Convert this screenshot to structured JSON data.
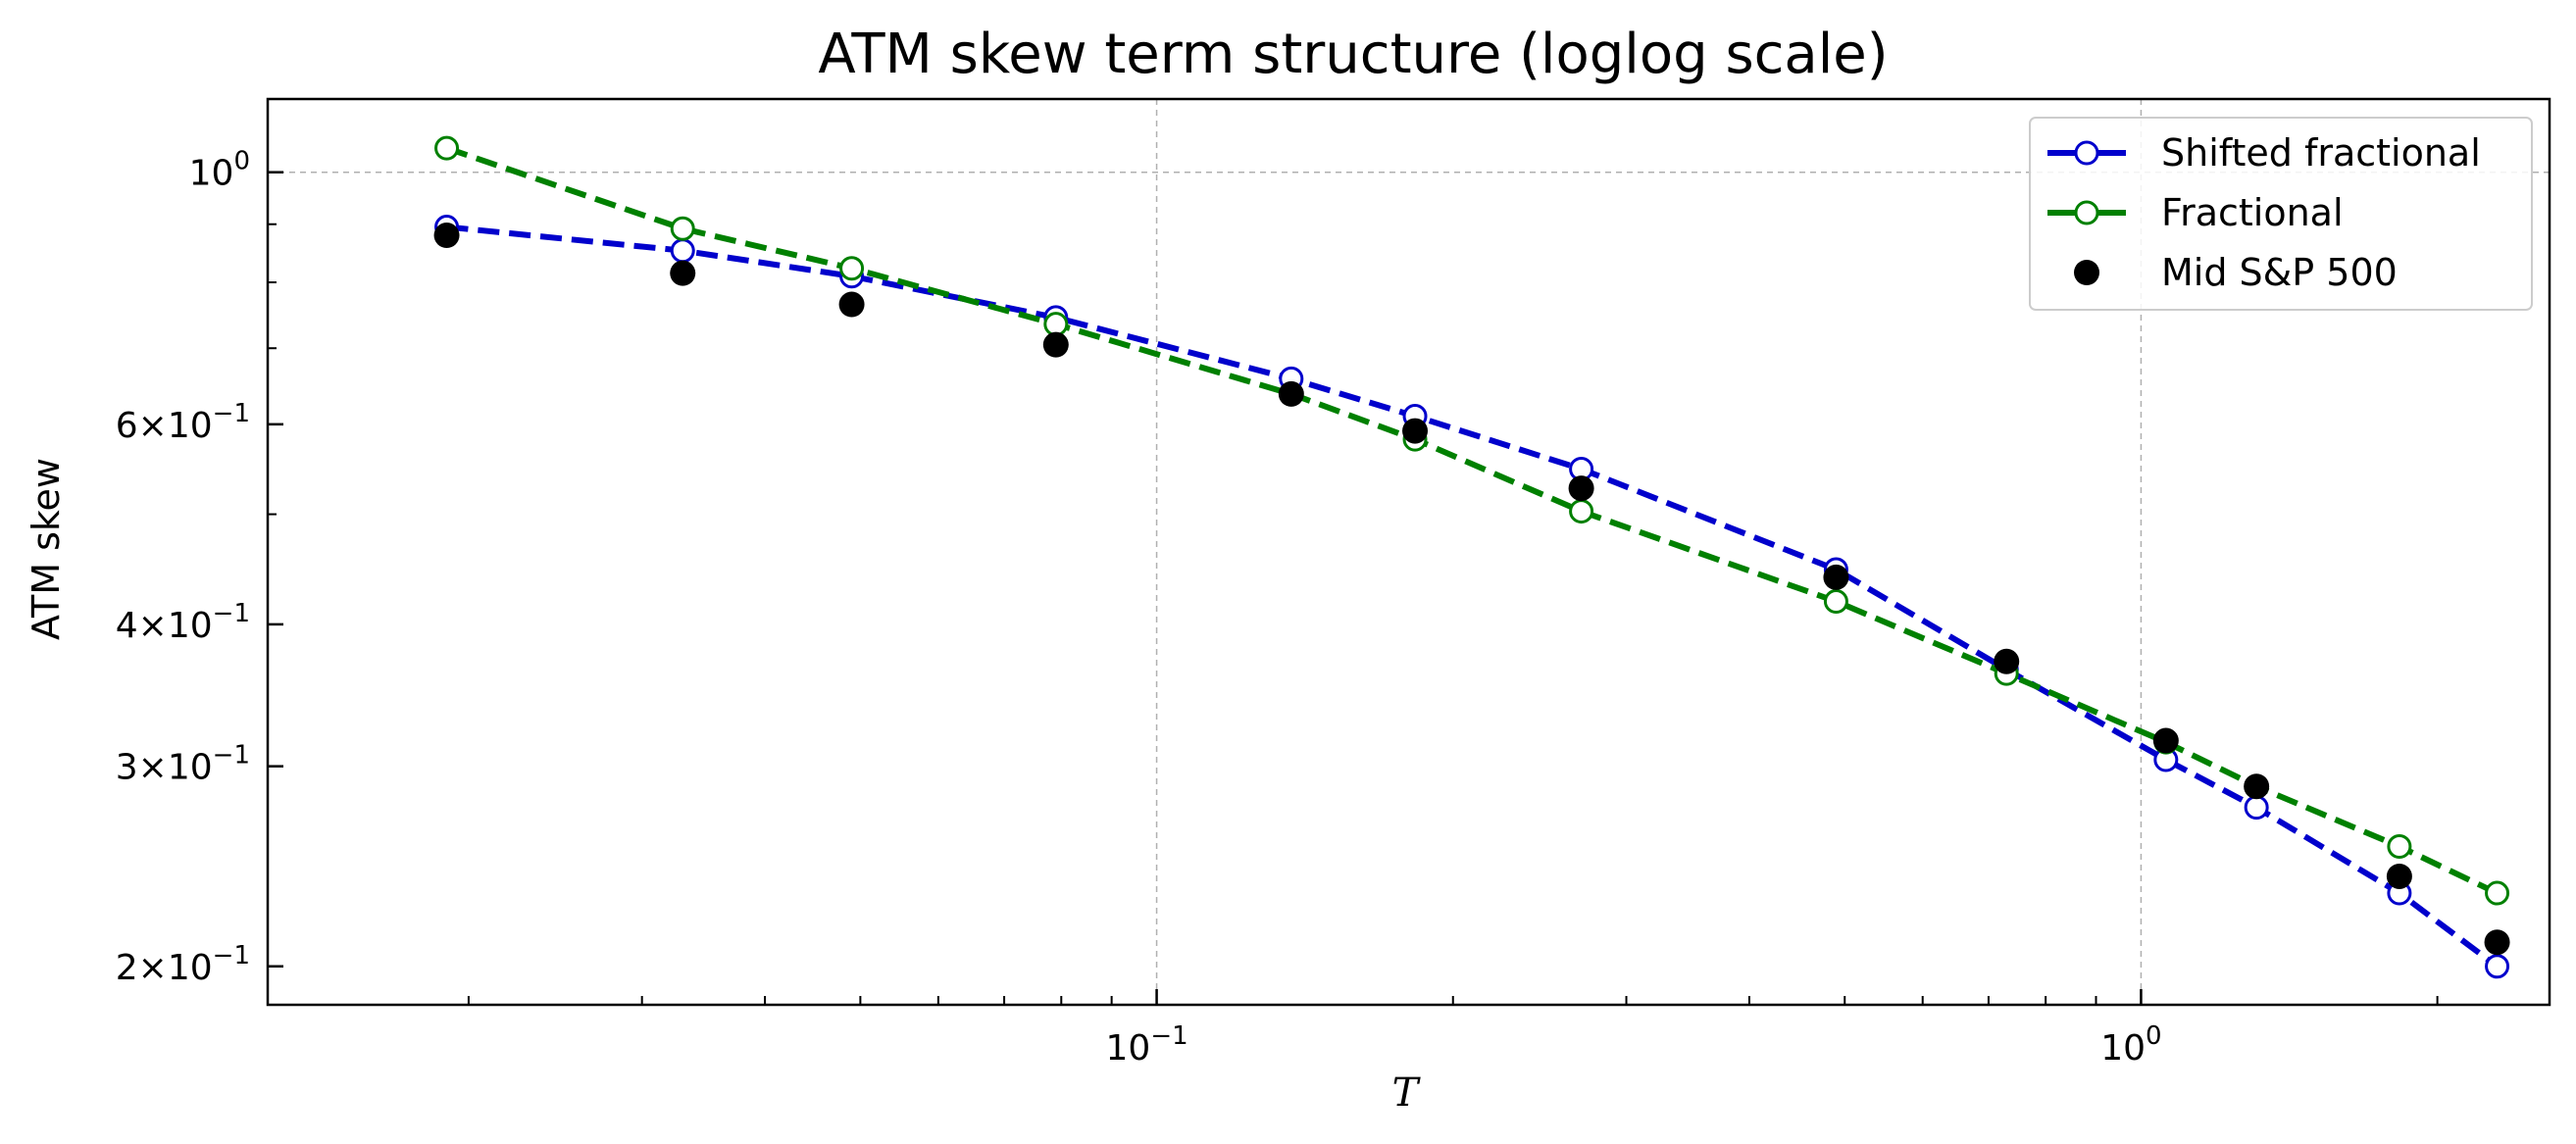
{
  "chart_data": {
    "type": "line",
    "title": "ATM skew term structure (loglog scale)",
    "xlabel": "T",
    "ylabel": "ATM skew",
    "xscale": "log",
    "yscale": "log",
    "xlim": [
      0.0125,
      2.6
    ],
    "ylim": [
      0.185,
      1.16
    ],
    "grid": "major-dashed",
    "legend_placement": "top-right",
    "x_ticks": [
      {
        "value": 0.1,
        "base": "10",
        "exp": "−1"
      },
      {
        "value": 1.0,
        "base": "10",
        "exp": "0"
      }
    ],
    "y_ticks": [
      {
        "value": 1.0,
        "mantissa": "",
        "base": "10",
        "exp": "0"
      },
      {
        "value": 0.6,
        "mantissa": "6",
        "base": "10",
        "exp": "−1"
      },
      {
        "value": 0.4,
        "mantissa": "4",
        "base": "10",
        "exp": "−1"
      },
      {
        "value": 0.3,
        "mantissa": "3",
        "base": "10",
        "exp": "−1"
      },
      {
        "value": 0.2,
        "mantissa": "2",
        "base": "10",
        "exp": "−1"
      }
    ],
    "series": [
      {
        "name": "Shifted fractional",
        "color": "#0000cc",
        "style": "dashed-line-open-circle",
        "x": [
          0.019,
          0.033,
          0.049,
          0.079,
          0.137,
          0.183,
          0.27,
          0.49,
          0.73,
          1.06,
          1.31,
          1.83,
          2.3
        ],
        "y": [
          0.895,
          0.853,
          0.81,
          0.745,
          0.658,
          0.61,
          0.548,
          0.447,
          0.365,
          0.304,
          0.276,
          0.232,
          0.2
        ]
      },
      {
        "name": "Fractional",
        "color": "#008000",
        "style": "dashed-line-open-circle",
        "x": [
          0.019,
          0.033,
          0.049,
          0.079,
          0.137,
          0.183,
          0.27,
          0.49,
          0.73,
          1.06,
          1.31,
          1.83,
          2.3
        ],
        "y": [
          1.05,
          0.892,
          0.823,
          0.735,
          0.638,
          0.582,
          0.503,
          0.419,
          0.362,
          0.315,
          0.288,
          0.255,
          0.232
        ]
      },
      {
        "name": "Mid S&P 500",
        "color": "#000000",
        "style": "filled-circle",
        "x": [
          0.019,
          0.033,
          0.049,
          0.079,
          0.137,
          0.183,
          0.27,
          0.49,
          0.73,
          1.06,
          1.31,
          1.83,
          2.3
        ],
        "y": [
          0.88,
          0.815,
          0.765,
          0.705,
          0.638,
          0.592,
          0.527,
          0.44,
          0.371,
          0.316,
          0.288,
          0.24,
          0.21
        ]
      }
    ]
  }
}
